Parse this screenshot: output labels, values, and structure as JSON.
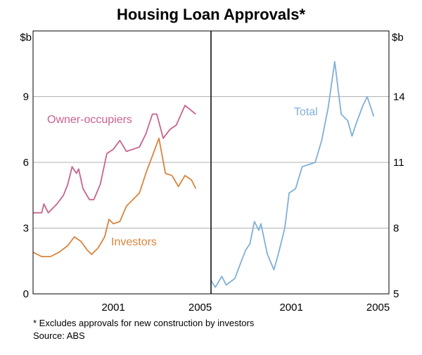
{
  "title": "Housing Loan Approvals*",
  "footnote": "*  Excludes approvals for new construction by investors",
  "source": "Source: ABS",
  "chart_data": [
    {
      "type": "line",
      "y_unit": "$b",
      "y_axis_side": "left",
      "xlim": [
        1997.8,
        2006
      ],
      "xticks": [
        {
          "value": 2001.5,
          "label": "2001"
        },
        {
          "value": 2005.5,
          "label": "2005"
        }
      ],
      "ylim": [
        0,
        12
      ],
      "yticks": [
        0,
        3,
        6,
        9
      ],
      "grid": true,
      "series": [
        {
          "name": "Owner-occupiers",
          "color": "#c8628f",
          "x": [
            1997.8,
            1998.2,
            1998.3,
            1998.5,
            1998.9,
            1999.2,
            1999.4,
            1999.6,
            1999.8,
            1999.9,
            2000.1,
            2000.4,
            2000.6,
            2000.9,
            2001.2,
            2001.5,
            2001.8,
            2002.1,
            2002.4,
            2002.7,
            2003.0,
            2003.3,
            2003.5,
            2003.8,
            2004.1,
            2004.4,
            2004.8,
            2005.3
          ],
          "values": [
            3.7,
            3.7,
            4.1,
            3.7,
            4.1,
            4.5,
            5.0,
            5.8,
            5.5,
            5.7,
            4.8,
            4.3,
            4.3,
            5.0,
            6.4,
            6.6,
            7.0,
            6.5,
            6.6,
            6.7,
            7.3,
            8.2,
            8.2,
            7.1,
            7.5,
            7.7,
            8.6,
            8.2
          ]
        },
        {
          "name": "Investors",
          "color": "#d9843b",
          "x": [
            1997.8,
            1998.2,
            1998.6,
            1999.0,
            1999.4,
            1999.7,
            2000.0,
            2000.3,
            2000.5,
            2000.8,
            2001.1,
            2001.3,
            2001.5,
            2001.8,
            2002.1,
            2002.4,
            2002.7,
            2003.0,
            2003.3,
            2003.6,
            2003.9,
            2004.2,
            2004.5,
            2004.8,
            2005.1,
            2005.3
          ],
          "values": [
            1.9,
            1.7,
            1.7,
            1.9,
            2.2,
            2.6,
            2.4,
            2.0,
            1.8,
            2.1,
            2.6,
            3.4,
            3.2,
            3.3,
            4.0,
            4.3,
            4.6,
            5.5,
            6.3,
            7.1,
            5.5,
            5.4,
            4.9,
            5.4,
            5.2,
            4.8
          ]
        }
      ]
    },
    {
      "type": "line",
      "y_unit": "$b",
      "y_axis_side": "right",
      "xlim": [
        1997.8,
        2006
      ],
      "xticks": [
        {
          "value": 2001.5,
          "label": "2001"
        },
        {
          "value": 2005.5,
          "label": "2005"
        }
      ],
      "ylim": [
        5,
        17
      ],
      "yticks": [
        5,
        8,
        11,
        14
      ],
      "grid": true,
      "series": [
        {
          "name": "Total",
          "color": "#7fb0d8",
          "x": [
            1997.8,
            1998.0,
            1998.3,
            1998.5,
            1998.9,
            1999.2,
            1999.4,
            1999.6,
            1999.8,
            2000.0,
            2000.1,
            2000.4,
            2000.7,
            2000.9,
            2001.2,
            2001.4,
            2001.7,
            2002.0,
            2002.3,
            2002.6,
            2002.9,
            2003.2,
            2003.5,
            2003.8,
            2004.1,
            2004.3,
            2004.5,
            2004.8,
            2005.0,
            2005.3
          ],
          "values": [
            5.6,
            5.3,
            5.8,
            5.4,
            5.7,
            6.5,
            7.0,
            7.3,
            8.3,
            7.9,
            8.2,
            6.8,
            6.1,
            6.8,
            8.0,
            9.6,
            9.8,
            10.8,
            10.9,
            11.0,
            12.0,
            13.5,
            15.6,
            13.2,
            12.9,
            12.2,
            12.8,
            13.6,
            14.0,
            13.1
          ]
        }
      ]
    }
  ]
}
